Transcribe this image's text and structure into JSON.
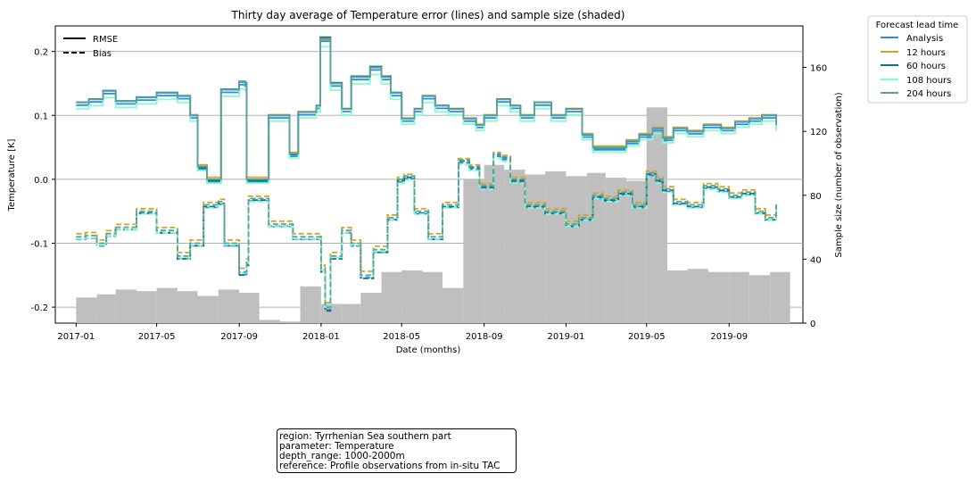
{
  "chart_data": {
    "type": "line",
    "title": "Thirty day average of Temperature error (lines) and sample size (shaded)",
    "xlabel": "Date (months)",
    "ylabel": "Temperature [K]",
    "y2label": "Sample size (number of observation)",
    "ylim": [
      -0.225,
      0.24
    ],
    "y2lim": [
      0,
      186
    ],
    "xlim": [
      "2016-12-01",
      "2019-12-20"
    ],
    "x_ticks": [
      "2017-01",
      "2017-05",
      "2017-09",
      "2018-01",
      "2018-05",
      "2018-09",
      "2019-01",
      "2019-05",
      "2019-09"
    ],
    "y_ticks": [
      "0.2",
      "0.1",
      "0.0",
      "-0.1",
      "-0.2"
    ],
    "y_tick_values": [
      0.2,
      0.1,
      0.0,
      -0.1,
      -0.2
    ],
    "y2_ticks": [
      "0",
      "40",
      "80",
      "120",
      "160"
    ],
    "y2_tick_values": [
      0,
      40,
      80,
      120,
      160
    ],
    "grid": "horizontal",
    "style_legend": [
      {
        "label": "RMSE",
        "dash": "solid"
      },
      {
        "label": "Bias",
        "dash": "dashed"
      }
    ],
    "legend_title": "Forecast lead time",
    "legend_position": "outside-right",
    "series": [
      {
        "name": "Analysis",
        "color": "#1f8ff0"
      },
      {
        "name": "12 hours",
        "color": "#d9a31f"
      },
      {
        "name": "60 hours",
        "color": "#0a7a72"
      },
      {
        "name": "108 hours",
        "color": "#7fffd4"
      },
      {
        "name": "204 hours",
        "color": "#5f9ea0"
      }
    ],
    "rmse_204h": [
      [
        "2017-01-01",
        0.12
      ],
      [
        "2017-01-20",
        0.125
      ],
      [
        "2017-02-10",
        0.138
      ],
      [
        "2017-03-01",
        0.122
      ],
      [
        "2017-04-01",
        0.128
      ],
      [
        "2017-05-01",
        0.135
      ],
      [
        "2017-06-01",
        0.13
      ],
      [
        "2017-06-20",
        0.1
      ],
      [
        "2017-07-01",
        0.02
      ],
      [
        "2017-07-15",
        0.0
      ],
      [
        "2017-08-01",
        0.0
      ],
      [
        "2017-08-05",
        0.14
      ],
      [
        "2017-09-01",
        0.152
      ],
      [
        "2017-09-10",
        0.15
      ],
      [
        "2017-09-12",
        0.0
      ],
      [
        "2017-10-10",
        0.0
      ],
      [
        "2017-10-15",
        0.1
      ],
      [
        "2017-10-30",
        0.1
      ],
      [
        "2017-11-15",
        0.04
      ],
      [
        "2017-11-28",
        0.105
      ],
      [
        "2017-12-25",
        0.115
      ],
      [
        "2017-12-31",
        0.22
      ],
      [
        "2018-01-07",
        0.22
      ],
      [
        "2018-01-15",
        0.15
      ],
      [
        "2018-02-01",
        0.11
      ],
      [
        "2018-02-15",
        0.16
      ],
      [
        "2018-03-01",
        0.16
      ],
      [
        "2018-03-15",
        0.175
      ],
      [
        "2018-04-01",
        0.16
      ],
      [
        "2018-04-15",
        0.135
      ],
      [
        "2018-05-01",
        0.095
      ],
      [
        "2018-05-20",
        0.11
      ],
      [
        "2018-06-01",
        0.13
      ],
      [
        "2018-06-20",
        0.115
      ],
      [
        "2018-07-10",
        0.11
      ],
      [
        "2018-08-01",
        0.095
      ],
      [
        "2018-08-20",
        0.085
      ],
      [
        "2018-09-01",
        0.1
      ],
      [
        "2018-09-20",
        0.125
      ],
      [
        "2018-10-10",
        0.115
      ],
      [
        "2018-10-25",
        0.1
      ],
      [
        "2018-11-15",
        0.12
      ],
      [
        "2018-12-10",
        0.1
      ],
      [
        "2019-01-01",
        0.11
      ],
      [
        "2019-01-25",
        0.07
      ],
      [
        "2019-02-10",
        0.05
      ],
      [
        "2019-03-10",
        0.05
      ],
      [
        "2019-04-01",
        0.06
      ],
      [
        "2019-04-20",
        0.07
      ],
      [
        "2019-05-10",
        0.08
      ],
      [
        "2019-05-25",
        0.065
      ],
      [
        "2019-06-10",
        0.08
      ],
      [
        "2019-07-01",
        0.075
      ],
      [
        "2019-07-25",
        0.085
      ],
      [
        "2019-08-20",
        0.08
      ],
      [
        "2019-09-10",
        0.09
      ],
      [
        "2019-10-01",
        0.095
      ],
      [
        "2019-10-20",
        0.1
      ],
      [
        "2019-11-10",
        0.085
      ]
    ],
    "bias_204h": [
      [
        "2017-01-01",
        -0.09
      ],
      [
        "2017-01-15",
        -0.088
      ],
      [
        "2017-02-01",
        -0.1
      ],
      [
        "2017-02-15",
        -0.085
      ],
      [
        "2017-03-01",
        -0.075
      ],
      [
        "2017-04-01",
        -0.05
      ],
      [
        "2017-05-01",
        -0.08
      ],
      [
        "2017-06-01",
        -0.12
      ],
      [
        "2017-06-20",
        -0.1
      ],
      [
        "2017-07-10",
        -0.04
      ],
      [
        "2017-08-01",
        -0.035
      ],
      [
        "2017-08-10",
        -0.1
      ],
      [
        "2017-09-01",
        -0.145
      ],
      [
        "2017-09-12",
        -0.13
      ],
      [
        "2017-09-15",
        -0.03
      ],
      [
        "2017-10-10",
        -0.03
      ],
      [
        "2017-10-15",
        -0.07
      ],
      [
        "2017-11-01",
        -0.07
      ],
      [
        "2017-11-20",
        -0.09
      ],
      [
        "2017-12-15",
        -0.09
      ],
      [
        "2018-01-01",
        -0.14
      ],
      [
        "2018-01-07",
        -0.2
      ],
      [
        "2018-01-15",
        -0.12
      ],
      [
        "2018-02-01",
        -0.08
      ],
      [
        "2018-02-15",
        -0.1
      ],
      [
        "2018-03-01",
        -0.15
      ],
      [
        "2018-03-20",
        -0.11
      ],
      [
        "2018-04-10",
        -0.06
      ],
      [
        "2018-04-25",
        0.0
      ],
      [
        "2018-05-05",
        0.005
      ],
      [
        "2018-05-20",
        -0.05
      ],
      [
        "2018-06-10",
        -0.09
      ],
      [
        "2018-07-01",
        -0.04
      ],
      [
        "2018-07-25",
        0.03
      ],
      [
        "2018-08-10",
        0.02
      ],
      [
        "2018-08-25",
        -0.01
      ],
      [
        "2018-09-15",
        0.04
      ],
      [
        "2018-09-25",
        0.035
      ],
      [
        "2018-10-10",
        0.0
      ],
      [
        "2018-11-01",
        -0.04
      ],
      [
        "2018-12-01",
        -0.05
      ],
      [
        "2019-01-01",
        -0.07
      ],
      [
        "2019-01-20",
        -0.06
      ],
      [
        "2019-02-10",
        -0.025
      ],
      [
        "2019-02-25",
        -0.03
      ],
      [
        "2019-03-20",
        -0.02
      ],
      [
        "2019-04-10",
        -0.04
      ],
      [
        "2019-05-01",
        0.01
      ],
      [
        "2019-05-15",
        0.0
      ],
      [
        "2019-05-25",
        -0.015
      ],
      [
        "2019-06-10",
        -0.035
      ],
      [
        "2019-07-01",
        -0.04
      ],
      [
        "2019-07-25",
        -0.01
      ],
      [
        "2019-08-15",
        -0.015
      ],
      [
        "2019-09-01",
        -0.025
      ],
      [
        "2019-09-20",
        -0.02
      ],
      [
        "2019-10-10",
        -0.05
      ],
      [
        "2019-10-25",
        -0.06
      ],
      [
        "2019-11-10",
        -0.04
      ]
    ],
    "sample_size": [
      [
        "2017-01",
        16
      ],
      [
        "2017-02",
        18
      ],
      [
        "2017-03",
        21
      ],
      [
        "2017-04",
        20
      ],
      [
        "2017-05",
        22
      ],
      [
        "2017-06",
        20
      ],
      [
        "2017-07",
        17
      ],
      [
        "2017-08",
        21
      ],
      [
        "2017-09",
        19
      ],
      [
        "2017-10",
        2
      ],
      [
        "2017-11",
        1
      ],
      [
        "2017-12",
        23
      ],
      [
        "2018-01",
        12
      ],
      [
        "2018-02",
        12
      ],
      [
        "2018-03",
        19
      ],
      [
        "2018-04",
        32
      ],
      [
        "2018-05",
        33
      ],
      [
        "2018-06",
        32
      ],
      [
        "2018-07",
        22
      ],
      [
        "2018-08",
        90
      ],
      [
        "2018-09",
        99
      ],
      [
        "2018-10",
        96
      ],
      [
        "2018-11",
        93
      ],
      [
        "2018-12",
        95
      ],
      [
        "2019-01",
        92
      ],
      [
        "2019-02",
        94
      ],
      [
        "2019-03",
        91
      ],
      [
        "2019-04",
        89
      ],
      [
        "2019-05",
        135
      ],
      [
        "2019-06",
        33
      ],
      [
        "2019-07",
        34
      ],
      [
        "2019-08",
        32
      ],
      [
        "2019-09",
        32
      ],
      [
        "2019-10",
        30
      ],
      [
        "2019-11",
        32
      ]
    ]
  },
  "info_box": {
    "line1": "region: Tyrrhenian Sea southern part",
    "line2": "parameter: Temperature",
    "line3": "depth_range: 1000-2000m",
    "line4": "reference: Profile observations from in-situ TAC"
  }
}
